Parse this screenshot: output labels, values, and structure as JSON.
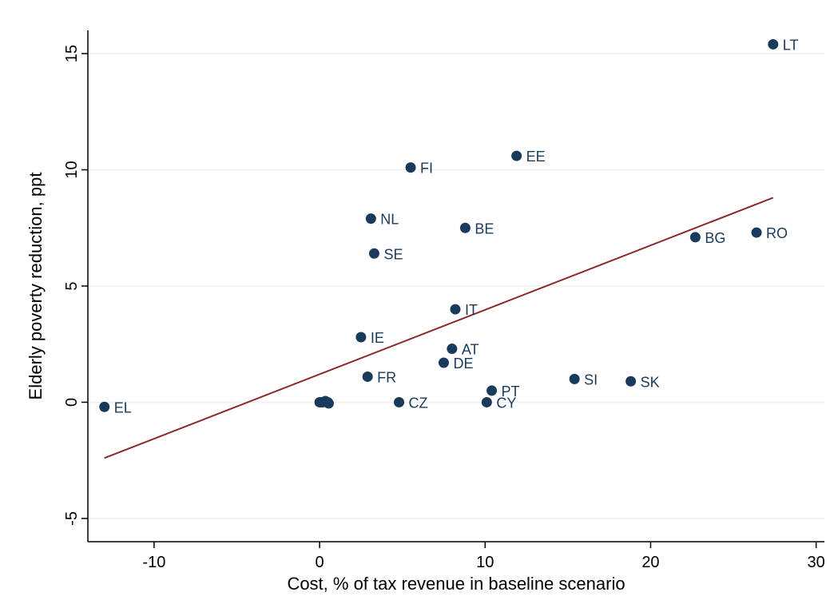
{
  "chart_data": {
    "type": "scatter",
    "xlabel": "Cost, % of tax revenue in baseline scenario",
    "ylabel": "Elderly poverty reduction, ppt",
    "xlim": [
      -14,
      30.5
    ],
    "ylim": [
      -6,
      16
    ],
    "xticks": [
      -10,
      0,
      10,
      20,
      30
    ],
    "yticks": [
      -5,
      0,
      5,
      10,
      15
    ],
    "grid": "horizontal",
    "legend": "none",
    "colors": {
      "points": "#1a3a5c",
      "labels": "#1a3a5c",
      "fit_line": "#8b2a2a",
      "grid": "#e9eff2",
      "axis": "#000000"
    },
    "points": [
      {
        "label": "LT",
        "x": 27.4,
        "y": 15.4
      },
      {
        "label": "EE",
        "x": 11.9,
        "y": 10.6
      },
      {
        "label": "FI",
        "x": 5.5,
        "y": 10.1
      },
      {
        "label": "NL",
        "x": 3.1,
        "y": 7.9
      },
      {
        "label": "BE",
        "x": 8.8,
        "y": 7.5
      },
      {
        "label": "BG",
        "x": 22.7,
        "y": 7.1
      },
      {
        "label": "RO",
        "x": 26.4,
        "y": 7.3
      },
      {
        "label": "SE",
        "x": 3.3,
        "y": 6.4
      },
      {
        "label": "IT",
        "x": 8.2,
        "y": 4.0
      },
      {
        "label": "IE",
        "x": 2.5,
        "y": 2.8
      },
      {
        "label": "AT",
        "x": 8.0,
        "y": 2.3
      },
      {
        "label": "DE",
        "x": 7.5,
        "y": 1.7
      },
      {
        "label": "FR",
        "x": 2.9,
        "y": 1.1
      },
      {
        "label": "SI",
        "x": 15.4,
        "y": 1.0
      },
      {
        "label": "SK",
        "x": 18.8,
        "y": 0.9
      },
      {
        "label": "PT",
        "x": 10.4,
        "y": 0.5
      },
      {
        "label": "CZ",
        "x": 4.8,
        "y": 0.0
      },
      {
        "label": "CY",
        "x": 10.1,
        "y": 0.0
      },
      {
        "label": "EL",
        "x": -13.0,
        "y": -0.2
      },
      {
        "label": "",
        "x": 0.0,
        "y": 0.0
      },
      {
        "label": "",
        "x": 0.1,
        "y": 0.0
      },
      {
        "label": "",
        "x": 0.2,
        "y": 0.0
      },
      {
        "label": "",
        "x": 0.35,
        "y": 0.05
      },
      {
        "label": "",
        "x": 0.5,
        "y": 0.0
      },
      {
        "label": "",
        "x": 0.55,
        "y": -0.05
      }
    ],
    "fit_line": {
      "x": [
        -13.0,
        27.4
      ],
      "y": [
        -2.4,
        8.8
      ]
    }
  }
}
